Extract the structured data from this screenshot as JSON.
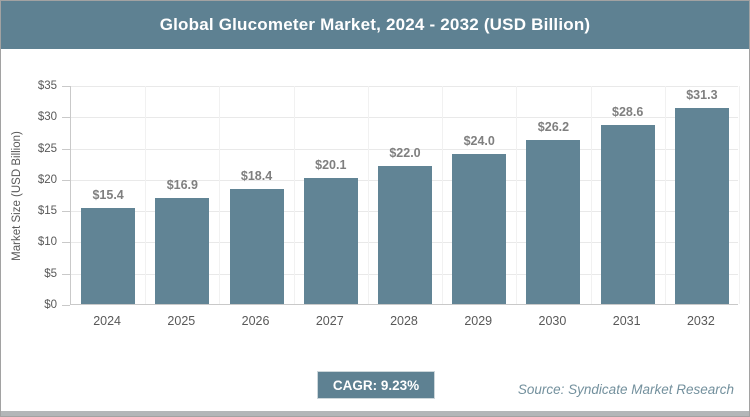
{
  "header": {
    "title": "Global Glucometer Market, 2024 - 2032 (USD Billion)"
  },
  "chart_data": {
    "type": "bar",
    "title": "Global Glucometer Market, 2024 - 2032 (USD Billion)",
    "categories": [
      "2024",
      "2025",
      "2026",
      "2027",
      "2028",
      "2029",
      "2030",
      "2031",
      "2032"
    ],
    "values": [
      15.4,
      16.9,
      18.4,
      20.1,
      22.0,
      24.0,
      26.2,
      28.6,
      31.3
    ],
    "bar_labels": [
      "$15.4",
      "$16.9",
      "$18.4",
      "$20.1",
      "$22.0",
      "$24.0",
      "$26.2",
      "$28.6",
      "$31.3"
    ],
    "xlabel": "",
    "ylabel": "Market Size (USD Billion)",
    "ylim": [
      0,
      35
    ],
    "ytick_interval": 5,
    "ytick_labels": [
      "$0",
      "$5",
      "$10",
      "$15",
      "$20",
      "$25",
      "$30",
      "$35"
    ],
    "grid": true,
    "legend": false
  },
  "footer": {
    "cagr_label": "CAGR: 9.23%",
    "source": "Source: Syndicate Market Research"
  },
  "colors": {
    "header_bg": "#5E8192",
    "badge_bg": "#5E8192",
    "bar_fill": "#618495",
    "axis_text": "#595959",
    "value_label": "#7F7F7F",
    "grid_line": "#E9E9E9",
    "axis_line": "#C9C9C9",
    "source_text": "#73909D",
    "bottom_strip": "#B3B6B8"
  }
}
